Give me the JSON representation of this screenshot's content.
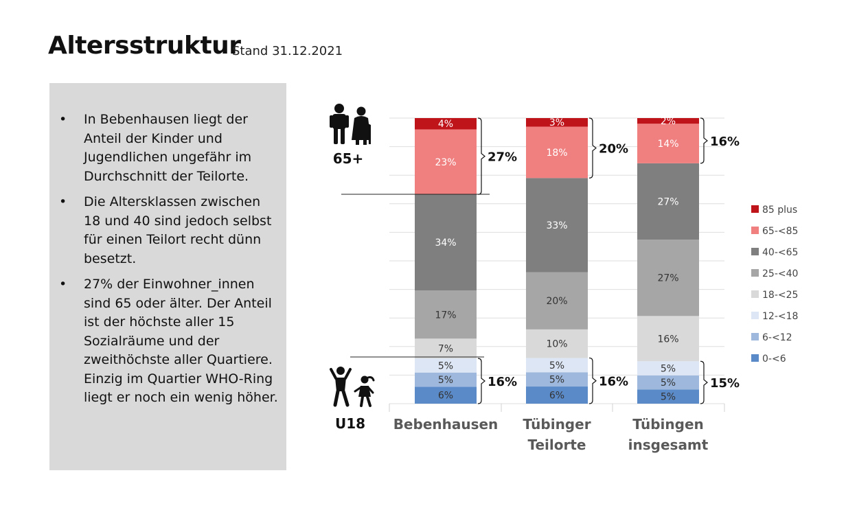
{
  "header": {
    "title": "Altersstruktur",
    "subtitle": "Stand 31.12.2021"
  },
  "panel": {
    "bullets": [
      "In Bebenhausen liegt der Anteil der Kinder und Jugendlichen ungefähr im Durchschnitt der Teilorte.",
      "Die Altersklassen zwischen 18 und 40 sind jedoch selbst für einen Teilort recht dünn besetzt.",
      "27% der Einwohner_innen sind 65 oder älter. Der Anteil ist der höchste aller 15 Sozialräume und der zweithöchste aller Quartiere. Einzig im Quartier WHO-Ring liegt er noch ein wenig höher."
    ],
    "bullet_glyph": "•"
  },
  "icons": {
    "seniors_label": "65+",
    "children_label": "U18",
    "seniors_icon": "elderly-couple-icon",
    "children_icon": "children-playing-icon"
  },
  "chart_data": {
    "type": "bar",
    "stacked": true,
    "categories": [
      "Bebenhausen",
      "Tübinger Teilorte",
      "Tübingen insgesamt"
    ],
    "category_lines": [
      [
        "Bebenhausen"
      ],
      [
        "Tübinger",
        "Teilorte"
      ],
      [
        "Tübingen",
        "insgesamt"
      ]
    ],
    "series": [
      {
        "name": "0-<6",
        "color": "#5b8ac9",
        "values": [
          6,
          6,
          5
        ]
      },
      {
        "name": "6-<12",
        "color": "#9db8dc",
        "values": [
          5,
          5,
          5
        ]
      },
      {
        "name": "12-<18",
        "color": "#dde6f4",
        "values": [
          5,
          5,
          5
        ]
      },
      {
        "name": "18-<25",
        "color": "#d9d9d9",
        "values": [
          7,
          10,
          16
        ]
      },
      {
        "name": "25-<40",
        "color": "#a6a6a6",
        "values": [
          17,
          20,
          27
        ]
      },
      {
        "name": "40-<65",
        "color": "#7f7f7f",
        "values": [
          34,
          33,
          27
        ]
      },
      {
        "name": "65-<85",
        "color": "#f08080",
        "values": [
          23,
          18,
          14
        ]
      },
      {
        "name": "85 plus",
        "color": "#c0141b",
        "values": [
          4,
          3,
          2
        ]
      }
    ],
    "value_labels": [
      [
        "6%",
        "6%",
        "5%"
      ],
      [
        "5%",
        "5%",
        "5%"
      ],
      [
        "5%",
        "5%",
        "5%"
      ],
      [
        "7%",
        "10%",
        "16%"
      ],
      [
        "17%",
        "20%",
        "27%"
      ],
      [
        "34%",
        "33%",
        "27%"
      ],
      [
        "23%",
        "18%",
        "14%"
      ],
      [
        "4%",
        "3%",
        "2%"
      ]
    ],
    "brackets_65plus": [
      "27%",
      "20%",
      "16%"
    ],
    "brackets_u18": [
      "16%",
      "16%",
      "15%"
    ],
    "legend_order": [
      "85 plus",
      "65-<85",
      "40-<65",
      "25-<40",
      "18-<25",
      "12-<18",
      "6-<12",
      "0-<6"
    ],
    "legend_position": "right",
    "ylim": [
      0,
      100
    ],
    "grid": true
  }
}
